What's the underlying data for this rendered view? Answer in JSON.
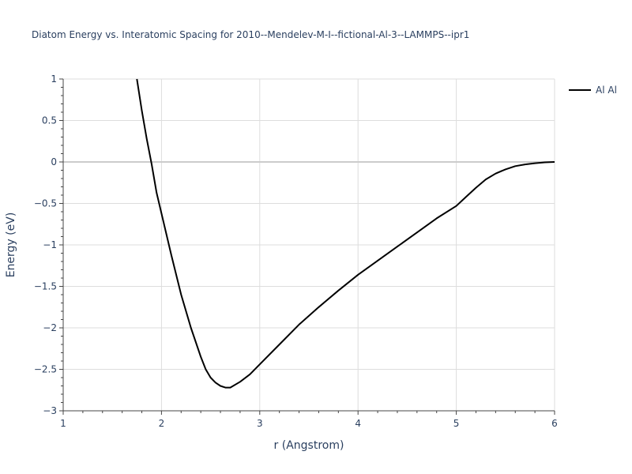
{
  "title": "Diatom Energy vs. Interatomic Spacing for 2010--Mendelev-M-I--fictional-Al-3--LAMMPS--ipr1",
  "chart_data": {
    "type": "line",
    "title": "Diatom Energy vs. Interatomic Spacing for 2010--Mendelev-M-I--fictional-Al-3--LAMMPS--ipr1",
    "xlabel": "r (Angstrom)",
    "ylabel": "Energy (eV)",
    "xlim": [
      1,
      6
    ],
    "ylim": [
      -3,
      1
    ],
    "x_ticks": [
      1,
      2,
      3,
      4,
      5,
      6
    ],
    "x_tick_labels": [
      "1",
      "2",
      "3",
      "4",
      "5",
      "6"
    ],
    "y_ticks": [
      1,
      0.5,
      0,
      -0.5,
      -1,
      -1.5,
      -2,
      -2.5,
      -3
    ],
    "y_tick_labels": [
      "1",
      "0.5",
      "0",
      "−0.5",
      "−1",
      "−1.5",
      "−2",
      "−2.5",
      "−3"
    ],
    "grid": true,
    "legend_position": "top-right",
    "series": [
      {
        "name": "Al Al",
        "color": "#000000",
        "x": [
          1.75,
          1.8,
          1.85,
          1.9,
          1.95,
          2.0,
          2.1,
          2.2,
          2.3,
          2.4,
          2.45,
          2.5,
          2.55,
          2.6,
          2.65,
          2.7,
          2.8,
          2.9,
          3.0,
          3.2,
          3.4,
          3.6,
          3.8,
          4.0,
          4.2,
          4.4,
          4.6,
          4.8,
          5.0,
          5.1,
          5.2,
          5.3,
          5.4,
          5.5,
          5.6,
          5.7,
          5.8,
          5.9,
          6.0
        ],
        "y": [
          1.0,
          0.62,
          0.28,
          -0.03,
          -0.37,
          -0.62,
          -1.12,
          -1.6,
          -2.0,
          -2.35,
          -2.5,
          -2.6,
          -2.66,
          -2.7,
          -2.72,
          -2.72,
          -2.65,
          -2.56,
          -2.44,
          -2.2,
          -1.96,
          -1.75,
          -1.55,
          -1.36,
          -1.19,
          -1.02,
          -0.85,
          -0.68,
          -0.53,
          -0.42,
          -0.31,
          -0.21,
          -0.14,
          -0.09,
          -0.05,
          -0.03,
          -0.015,
          -0.005,
          0.0
        ]
      }
    ]
  }
}
